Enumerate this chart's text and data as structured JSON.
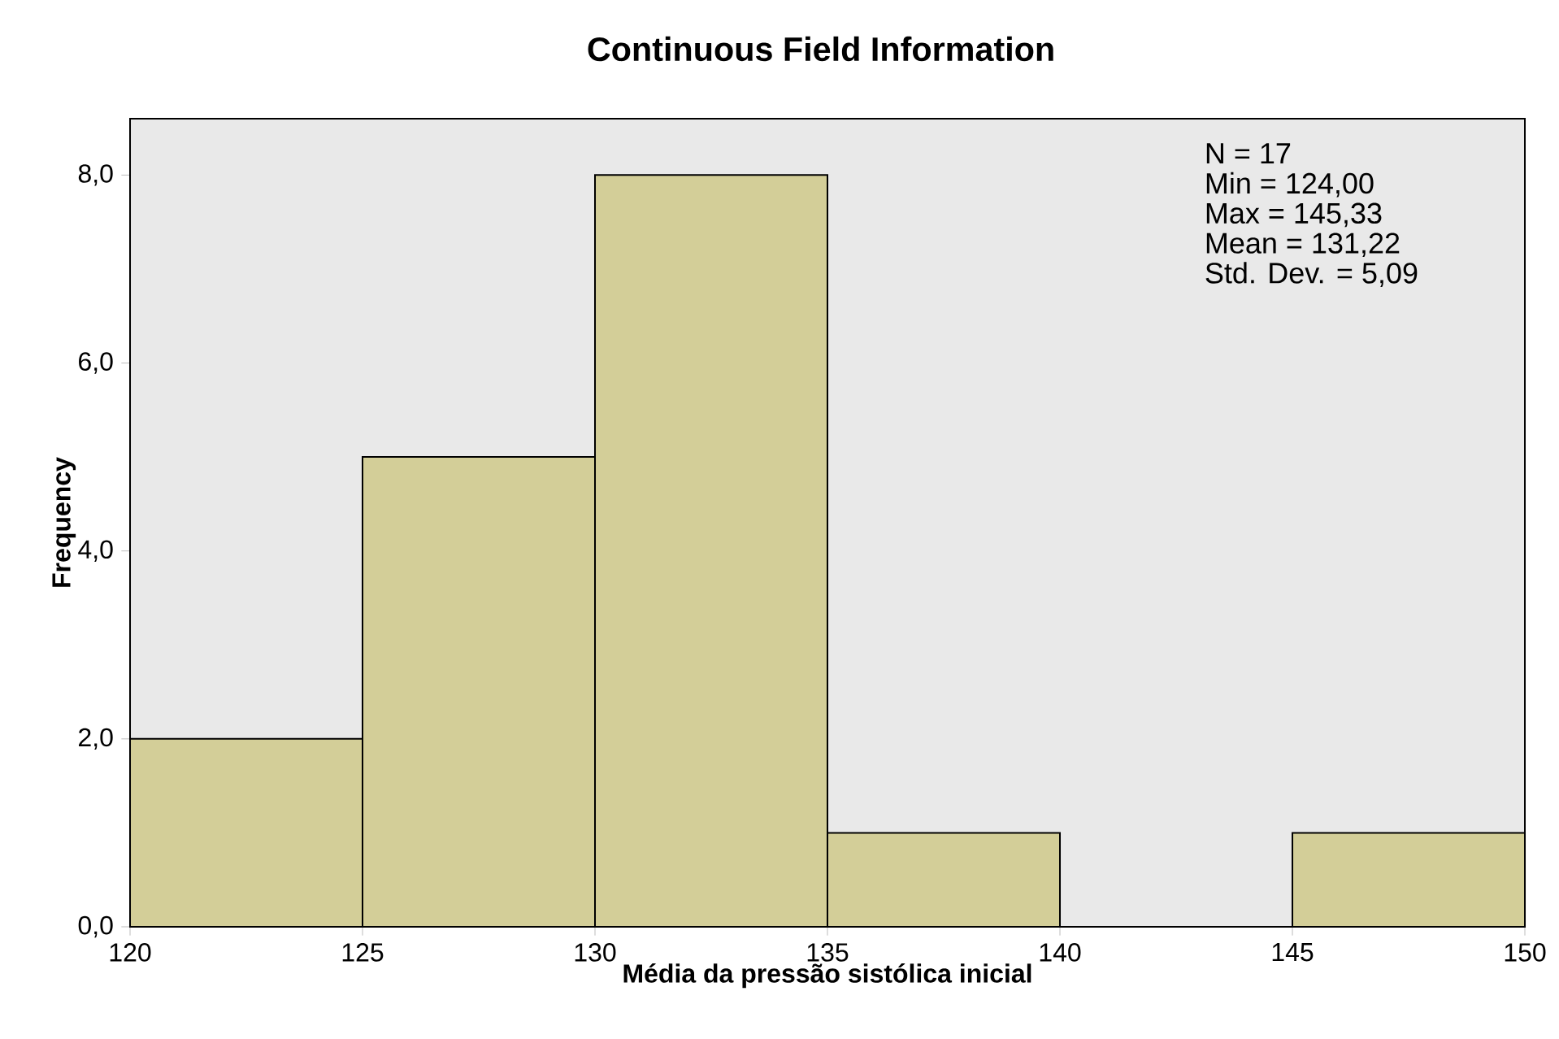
{
  "chart_data": {
    "type": "histogram",
    "title": "Continuous Field Information",
    "xlabel": "Média da  pressão sistólica inicial",
    "ylabel": "Frequency",
    "bins": [
      120,
      125,
      130,
      135,
      140,
      145,
      150
    ],
    "values": [
      2,
      5,
      8,
      1,
      0,
      1
    ],
    "color": "#d3ce98",
    "xlim": [
      120,
      150
    ],
    "xticks": [
      120,
      125,
      130,
      135,
      140,
      145,
      150
    ],
    "ylim": [
      0,
      8.6
    ],
    "yticks": [
      {
        "value": 0,
        "label": "0,0"
      },
      {
        "value": 2,
        "label": "2,0"
      },
      {
        "value": 4,
        "label": "4,0"
      },
      {
        "value": 6,
        "label": "6,0"
      },
      {
        "value": 8,
        "label": "8,0"
      }
    ],
    "annotations": [
      "N = 17",
      "Min = 124,00",
      "Max = 145,33",
      "Mean = 131,22",
      "Std. Dev. = 5,09"
    ]
  }
}
